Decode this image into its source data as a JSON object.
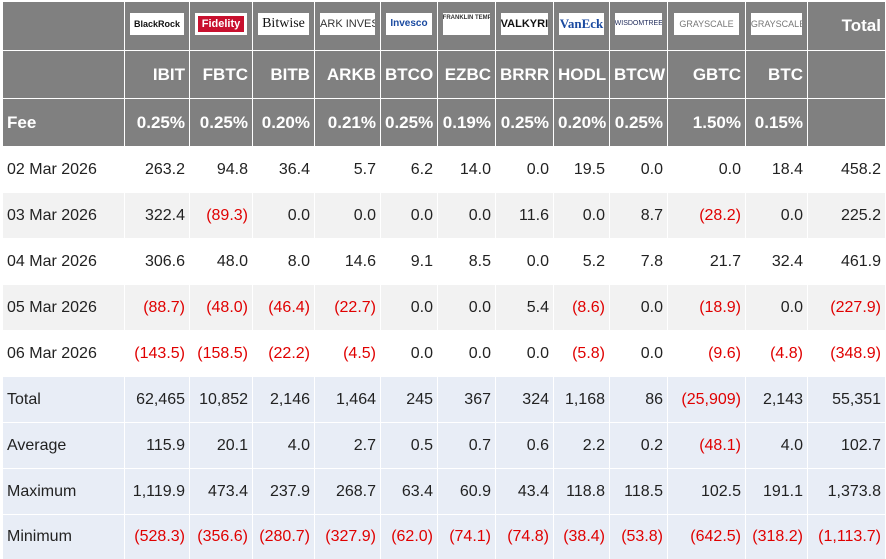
{
  "header": {
    "logos": [
      "BlackRock",
      "Fidelity",
      "Bitwise",
      "ARK INVEST",
      "Invesco",
      "FRANKLIN TEMPLETON",
      "VALKYRIE",
      "VanEck",
      "WISDOMTREE",
      "GRAYSCALE",
      "GRAYSCALE"
    ],
    "total": "Total",
    "tickers": [
      "IBIT",
      "FBTC",
      "BITB",
      "ARKB",
      "BTCO",
      "EZBC",
      "BRRR",
      "HODL",
      "BTCW",
      "GBTC",
      "BTC"
    ],
    "fee_label": "Fee",
    "fees": [
      "0.25%",
      "0.25%",
      "0.20%",
      "0.21%",
      "0.25%",
      "0.19%",
      "0.25%",
      "0.20%",
      "0.25%",
      "1.50%",
      "0.15%"
    ]
  },
  "rows": [
    {
      "label": "02 Mar 2026",
      "cells": [
        "263.2",
        "94.8",
        "36.4",
        "5.7",
        "6.2",
        "14.0",
        "0.0",
        "19.5",
        "0.0",
        "0.0",
        "18.4",
        "458.2"
      ]
    },
    {
      "label": "03 Mar 2026",
      "cells": [
        "322.4",
        "(89.3)",
        "0.0",
        "0.0",
        "0.0",
        "0.0",
        "11.6",
        "0.0",
        "8.7",
        "(28.2)",
        "0.0",
        "225.2"
      ]
    },
    {
      "label": "04 Mar 2026",
      "cells": [
        "306.6",
        "48.0",
        "8.0",
        "14.6",
        "9.1",
        "8.5",
        "0.0",
        "5.2",
        "7.8",
        "21.7",
        "32.4",
        "461.9"
      ]
    },
    {
      "label": "05 Mar 2026",
      "cells": [
        "(88.7)",
        "(48.0)",
        "(46.4)",
        "(22.7)",
        "0.0",
        "0.0",
        "5.4",
        "(8.6)",
        "0.0",
        "(18.9)",
        "0.0",
        "(227.9)"
      ]
    },
    {
      "label": "06 Mar 2026",
      "cells": [
        "(143.5)",
        "(158.5)",
        "(22.2)",
        "(4.5)",
        "0.0",
        "0.0",
        "0.0",
        "(5.8)",
        "0.0",
        "(9.6)",
        "(4.8)",
        "(348.9)"
      ]
    }
  ],
  "summary": [
    {
      "label": "Total",
      "cells": [
        "62,465",
        "10,852",
        "2,146",
        "1,464",
        "245",
        "367",
        "324",
        "1,168",
        "86",
        "(25,909)",
        "2,143",
        "55,351"
      ]
    },
    {
      "label": "Average",
      "cells": [
        "115.9",
        "20.1",
        "4.0",
        "2.7",
        "0.5",
        "0.7",
        "0.6",
        "2.2",
        "0.2",
        "(48.1)",
        "4.0",
        "102.7"
      ]
    },
    {
      "label": "Maximum",
      "cells": [
        "1,119.9",
        "473.4",
        "237.9",
        "268.7",
        "63.4",
        "60.9",
        "43.4",
        "118.8",
        "118.5",
        "102.5",
        "191.1",
        "1,373.8"
      ]
    },
    {
      "label": "Minimum",
      "cells": [
        "(528.3)",
        "(356.6)",
        "(280.7)",
        "(327.9)",
        "(62.0)",
        "(74.1)",
        "(74.8)",
        "(38.4)",
        "(53.8)",
        "(642.5)",
        "(318.2)",
        "(1,113.7)"
      ]
    }
  ]
}
